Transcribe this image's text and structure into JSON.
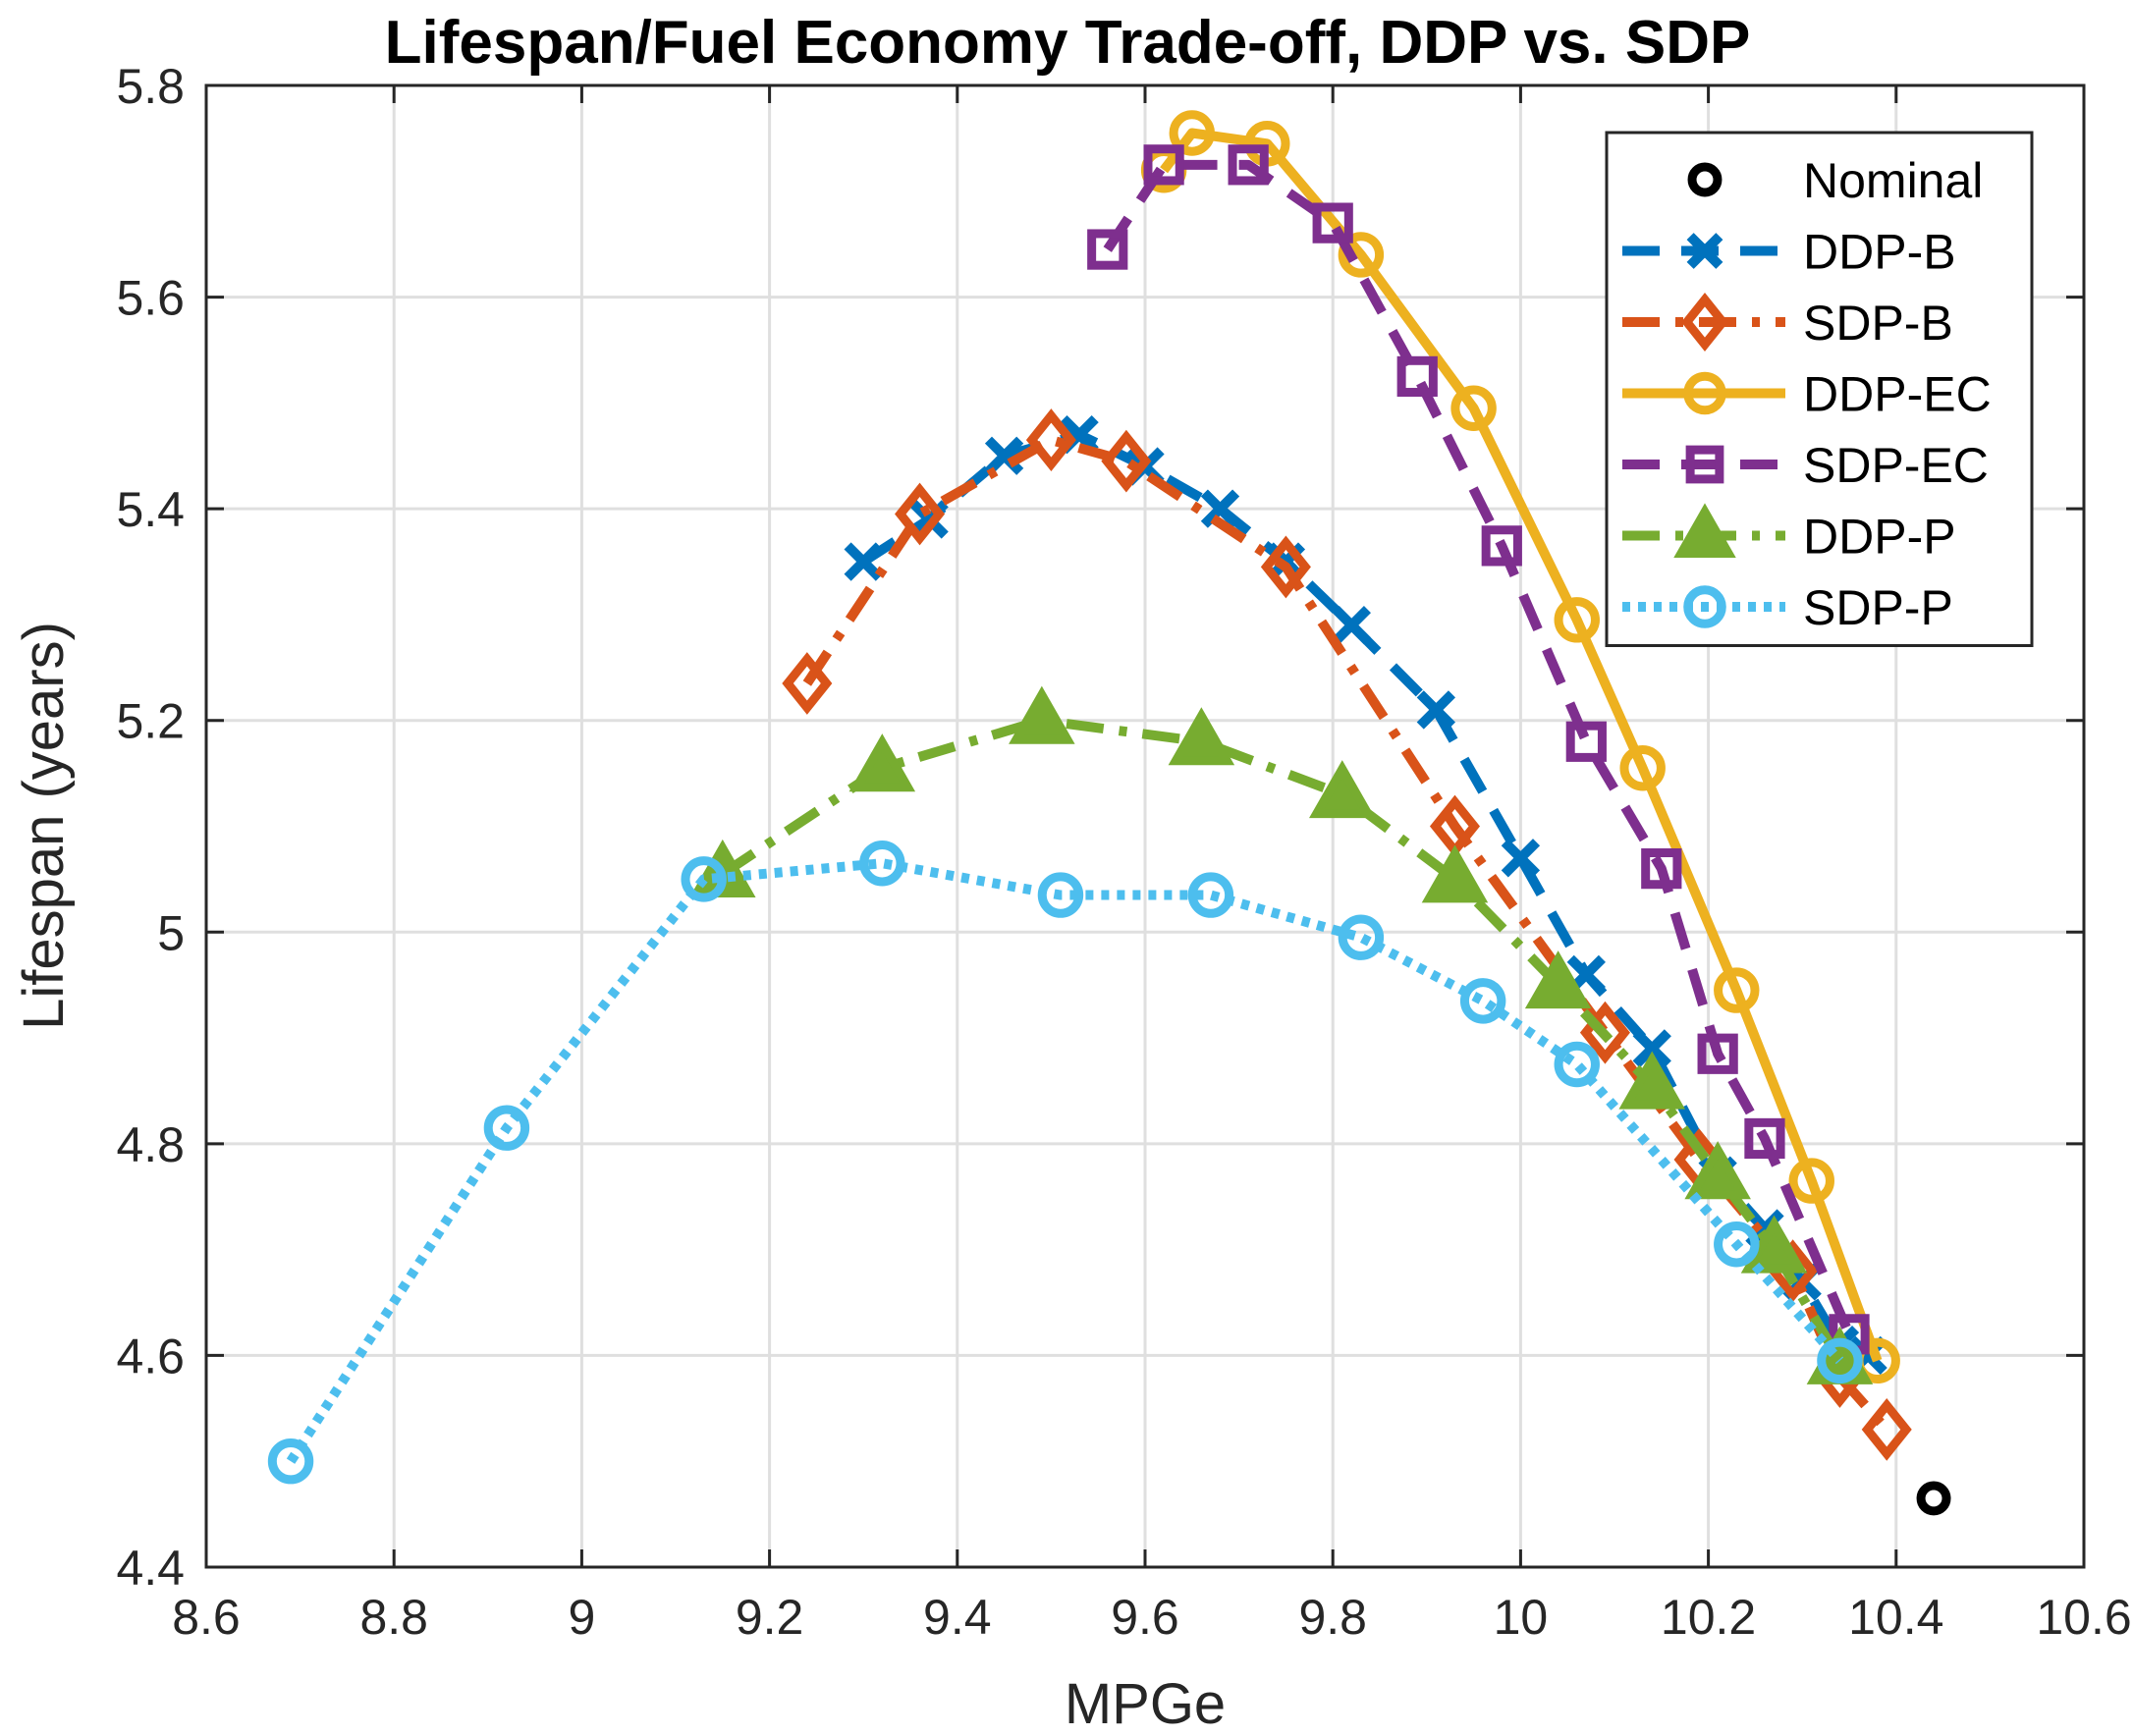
{
  "chart_data": {
    "type": "line",
    "title": "Lifespan/Fuel Economy Trade-off, DDP vs. SDP",
    "xlabel": "MPGe",
    "ylabel": "Lifespan (years)",
    "xlim": [
      8.6,
      10.6
    ],
    "ylim": [
      4.4,
      5.8
    ],
    "xticks": [
      8.6,
      8.8,
      9,
      9.2,
      9.4,
      9.6,
      9.8,
      10,
      10.2,
      10.4,
      10.6
    ],
    "xtick_labels": [
      "8.6",
      "8.8",
      "9",
      "9.2",
      "9.4",
      "9.6",
      "9.8",
      "10",
      "10.2",
      "10.4",
      "10.6"
    ],
    "yticks": [
      4.4,
      4.6,
      4.8,
      5,
      5.2,
      5.4,
      5.6,
      5.8
    ],
    "ytick_labels": [
      "4.4",
      "4.6",
      "4.8",
      "5",
      "5.2",
      "5.4",
      "5.6",
      "5.8"
    ],
    "grid": true,
    "legend_position": "top-right",
    "series": [
      {
        "name": "Nominal",
        "color": "#000000",
        "line": "none",
        "marker": "circle",
        "x": [
          10.44
        ],
        "y": [
          4.465
        ]
      },
      {
        "name": "DDP-B",
        "color": "#0072BD",
        "line": "dashed",
        "marker": "x",
        "x": [
          9.3,
          9.37,
          9.45,
          9.53,
          9.6,
          9.68,
          9.75,
          9.82,
          9.91,
          10.0,
          10.07,
          10.14,
          10.21,
          10.26,
          10.3,
          10.34,
          10.37
        ],
        "y": [
          5.35,
          5.39,
          5.45,
          5.47,
          5.44,
          5.4,
          5.35,
          5.29,
          5.21,
          5.07,
          4.96,
          4.89,
          4.77,
          4.72,
          4.67,
          4.61,
          4.6
        ]
      },
      {
        "name": "SDP-B",
        "color": "#D95319",
        "line": "dashdot",
        "marker": "diamond",
        "x": [
          9.24,
          9.36,
          9.5,
          9.58,
          9.75,
          9.93,
          10.09,
          10.19,
          10.29,
          10.34,
          10.39
        ],
        "y": [
          5.235,
          5.395,
          5.465,
          5.445,
          5.345,
          5.1,
          4.905,
          4.785,
          4.68,
          4.58,
          4.53
        ]
      },
      {
        "name": "DDP-EC",
        "color": "#EDB120",
        "line": "solid",
        "marker": "circle",
        "x": [
          9.62,
          9.65,
          9.73,
          9.83,
          9.95,
          10.06,
          10.13,
          10.23,
          10.31,
          10.38
        ],
        "y": [
          5.72,
          5.755,
          5.745,
          5.64,
          5.495,
          5.295,
          5.155,
          4.945,
          4.765,
          4.595
        ]
      },
      {
        "name": "SDP-EC",
        "color": "#7E2F8E",
        "line": "dashed",
        "marker": "square",
        "x": [
          9.56,
          9.62,
          9.71,
          9.8,
          9.89,
          9.98,
          10.07,
          10.15,
          10.21,
          10.26,
          10.35
        ],
        "y": [
          5.645,
          5.725,
          5.725,
          5.67,
          5.525,
          5.365,
          5.18,
          5.06,
          4.885,
          4.805,
          4.62
        ]
      },
      {
        "name": "DDP-P",
        "color": "#77AC30",
        "line": "dashdot",
        "marker": "triangle",
        "x": [
          9.15,
          9.32,
          9.49,
          9.66,
          9.81,
          9.93,
          10.04,
          10.14,
          10.21,
          10.27,
          10.34
        ],
        "y": [
          5.055,
          5.155,
          5.2,
          5.18,
          5.13,
          5.05,
          4.95,
          4.855,
          4.77,
          4.7,
          4.595
        ]
      },
      {
        "name": "SDP-P",
        "color": "#4DBEEE",
        "line": "dotted",
        "marker": "circle",
        "x": [
          8.69,
          8.92,
          9.13,
          9.32,
          9.51,
          9.67,
          9.83,
          9.96,
          10.06,
          10.23,
          10.34
        ],
        "y": [
          4.5,
          4.815,
          5.05,
          5.065,
          5.035,
          5.035,
          4.995,
          4.935,
          4.875,
          4.705,
          4.595
        ]
      }
    ]
  }
}
